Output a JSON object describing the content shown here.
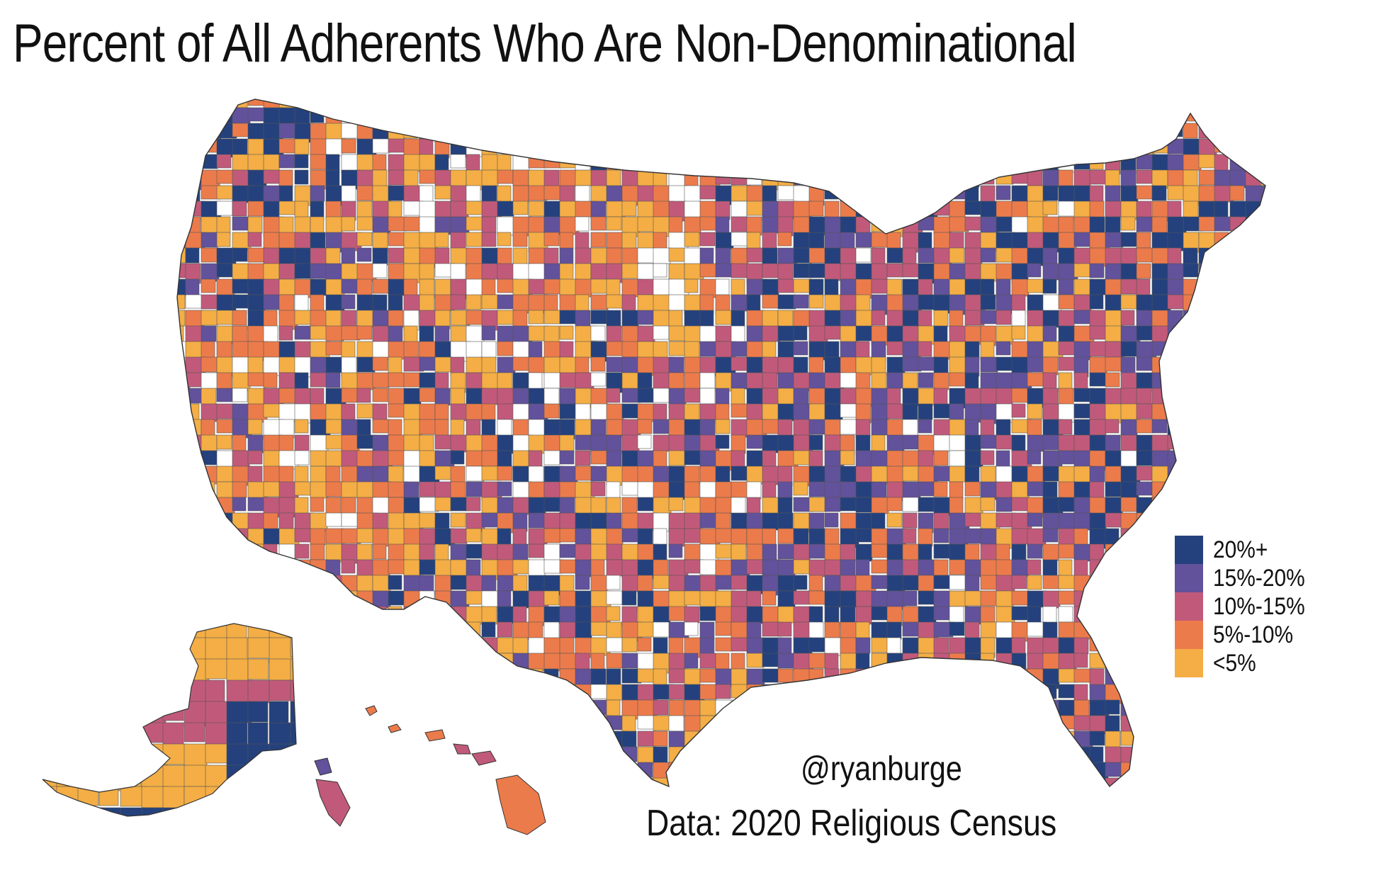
{
  "title": "Percent of All Adherents Who Are Non-Denominational",
  "credit": "@ryanburge",
  "source": "Data: 2020 Religious Census",
  "legend": {
    "items": [
      {
        "label": "20%+",
        "color": "#24417d"
      },
      {
        "label": "15%-20%",
        "color": "#62519b"
      },
      {
        "label": "10%-15%",
        "color": "#c15a7a"
      },
      {
        "label": "5%-10%",
        "color": "#ec7b4b"
      },
      {
        "label": "<5%",
        "color": "#f4ae45"
      }
    ]
  },
  "map": {
    "type": "choropleth",
    "region": "United States counties",
    "no_data_color": "#ffffff",
    "border_color": "#555555"
  }
}
